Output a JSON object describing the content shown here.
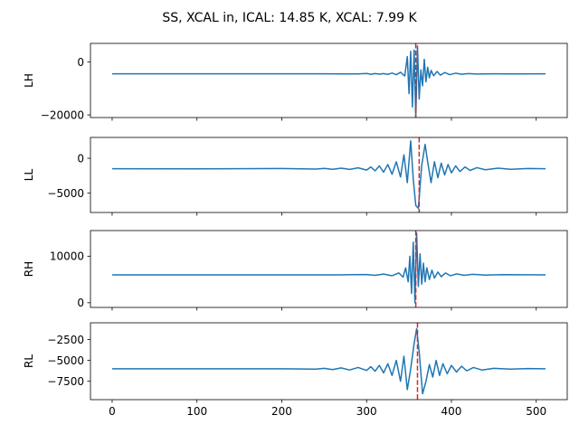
{
  "figure": {
    "title": "SS, XCAL in, ICAL: 14.85 K, XCAL: 7.99 K"
  },
  "colors": {
    "signal": "#1f77b4",
    "marker": "#d62728",
    "axes": "#000000",
    "background": "#ffffff"
  },
  "chart_data": [
    {
      "type": "line",
      "ylabel": "LH",
      "xlim": [
        -25.55,
        536.55
      ],
      "ylim": [
        -21000,
        7000
      ],
      "yticks": [
        -20000,
        0
      ],
      "ytick_labels": [
        "−20000",
        "0"
      ],
      "xticks": [
        0,
        100,
        200,
        300,
        400,
        500
      ],
      "xtick_labels": [],
      "marker_x": 358,
      "baseline": -4500,
      "series": [
        {
          "values": [
            [
              0,
              -4500
            ],
            [
              250,
              -4500
            ],
            [
              290,
              -4520
            ],
            [
              300,
              -4350
            ],
            [
              305,
              -4650
            ],
            [
              310,
              -4380
            ],
            [
              315,
              -4620
            ],
            [
              320,
              -4400
            ],
            [
              325,
              -4700
            ],
            [
              330,
              -4200
            ],
            [
              335,
              -4800
            ],
            [
              340,
              -3900
            ],
            [
              345,
              -5300
            ],
            [
              348,
              2000
            ],
            [
              350,
              -12000
            ],
            [
              352,
              4000
            ],
            [
              354,
              -17000
            ],
            [
              356,
              4500
            ],
            [
              358,
              -21000
            ],
            [
              360,
              6000
            ],
            [
              362,
              -14000
            ],
            [
              364,
              -3000
            ],
            [
              366,
              -9000
            ],
            [
              368,
              1000
            ],
            [
              370,
              -7500
            ],
            [
              372,
              -2000
            ],
            [
              374,
              -6000
            ],
            [
              376,
              -3200
            ],
            [
              379,
              -5200
            ],
            [
              383,
              -3600
            ],
            [
              387,
              -5000
            ],
            [
              392,
              -4000
            ],
            [
              398,
              -4800
            ],
            [
              405,
              -4250
            ],
            [
              412,
              -4650
            ],
            [
              420,
              -4400
            ],
            [
              430,
              -4550
            ],
            [
              450,
              -4480
            ],
            [
              470,
              -4520
            ],
            [
              511,
              -4500
            ]
          ]
        }
      ]
    },
    {
      "type": "line",
      "ylabel": "LL",
      "xlim": [
        -25.55,
        536.55
      ],
      "ylim": [
        -7800,
        3000
      ],
      "yticks": [
        -5000,
        0
      ],
      "ytick_labels": [
        "−5000",
        "0"
      ],
      "xticks": [
        0,
        100,
        200,
        300,
        400,
        500
      ],
      "xtick_labels": [],
      "marker_x": 362,
      "baseline": -1500,
      "series": [
        {
          "values": [
            [
              0,
              -1500
            ],
            [
              100,
              -1520
            ],
            [
              200,
              -1480
            ],
            [
              240,
              -1550
            ],
            [
              250,
              -1450
            ],
            [
              260,
              -1580
            ],
            [
              270,
              -1420
            ],
            [
              280,
              -1600
            ],
            [
              290,
              -1380
            ],
            [
              300,
              -1700
            ],
            [
              305,
              -1250
            ],
            [
              310,
              -1800
            ],
            [
              315,
              -1100
            ],
            [
              320,
              -2000
            ],
            [
              325,
              -900
            ],
            [
              330,
              -2300
            ],
            [
              335,
              -500
            ],
            [
              340,
              -2700
            ],
            [
              344,
              500
            ],
            [
              348,
              -3500
            ],
            [
              352,
              2500
            ],
            [
              355,
              -3000
            ],
            [
              358,
              -6800
            ],
            [
              361,
              -7200
            ],
            [
              365,
              -1000
            ],
            [
              369,
              2000
            ],
            [
              372,
              -500
            ],
            [
              376,
              -3500
            ],
            [
              380,
              -500
            ],
            [
              384,
              -2800
            ],
            [
              388,
              -700
            ],
            [
              392,
              -2400
            ],
            [
              396,
              -900
            ],
            [
              400,
              -2100
            ],
            [
              405,
              -1100
            ],
            [
              410,
              -1900
            ],
            [
              416,
              -1250
            ],
            [
              422,
              -1750
            ],
            [
              430,
              -1350
            ],
            [
              440,
              -1650
            ],
            [
              455,
              -1420
            ],
            [
              470,
              -1580
            ],
            [
              490,
              -1470
            ],
            [
              511,
              -1500
            ]
          ]
        }
      ]
    },
    {
      "type": "line",
      "ylabel": "RH",
      "xlim": [
        -25.55,
        536.55
      ],
      "ylim": [
        -1000,
        15500
      ],
      "yticks": [
        0,
        10000
      ],
      "ytick_labels": [
        "0",
        "10000"
      ],
      "xticks": [
        0,
        100,
        200,
        300,
        400,
        500
      ],
      "xtick_labels": [],
      "marker_x": 358,
      "baseline": 6000,
      "series": [
        {
          "values": [
            [
              0,
              6000
            ],
            [
              270,
              6000
            ],
            [
              300,
              6050
            ],
            [
              310,
              5900
            ],
            [
              320,
              6150
            ],
            [
              330,
              5800
            ],
            [
              338,
              6400
            ],
            [
              343,
              5500
            ],
            [
              346,
              7500
            ],
            [
              349,
              4500
            ],
            [
              351,
              10000
            ],
            [
              353,
              2000
            ],
            [
              355,
              13000
            ],
            [
              357,
              0
            ],
            [
              359,
              15000
            ],
            [
              361,
              3500
            ],
            [
              363,
              10500
            ],
            [
              365,
              4000
            ],
            [
              367,
              8500
            ],
            [
              369,
              4500
            ],
            [
              371,
              7500
            ],
            [
              374,
              5000
            ],
            [
              377,
              7000
            ],
            [
              380,
              5300
            ],
            [
              384,
              6600
            ],
            [
              388,
              5600
            ],
            [
              393,
              6400
            ],
            [
              399,
              5800
            ],
            [
              406,
              6200
            ],
            [
              415,
              5900
            ],
            [
              425,
              6100
            ],
            [
              440,
              5950
            ],
            [
              460,
              6030
            ],
            [
              511,
              6000
            ]
          ]
        }
      ]
    },
    {
      "type": "line",
      "ylabel": "RL",
      "xlim": [
        -25.55,
        536.55
      ],
      "ylim": [
        -9700,
        -500
      ],
      "yticks": [
        -7500,
        -5000,
        -2500
      ],
      "ytick_labels": [
        "−7500",
        "−5000",
        "−2500"
      ],
      "xticks": [
        0,
        100,
        200,
        300,
        400,
        500
      ],
      "xtick_labels": [
        "0",
        "100",
        "200",
        "300",
        "400",
        "500"
      ],
      "marker_x": 360,
      "baseline": -6000,
      "series": [
        {
          "values": [
            [
              0,
              -6000
            ],
            [
              200,
              -6000
            ],
            [
              240,
              -6050
            ],
            [
              250,
              -5950
            ],
            [
              260,
              -6100
            ],
            [
              270,
              -5900
            ],
            [
              280,
              -6150
            ],
            [
              290,
              -5850
            ],
            [
              300,
              -6200
            ],
            [
              305,
              -5750
            ],
            [
              310,
              -6300
            ],
            [
              315,
              -5600
            ],
            [
              320,
              -6500
            ],
            [
              325,
              -5400
            ],
            [
              330,
              -6800
            ],
            [
              335,
              -5000
            ],
            [
              340,
              -7500
            ],
            [
              344,
              -4500
            ],
            [
              348,
              -8500
            ],
            [
              352,
              -6000
            ],
            [
              356,
              -3000
            ],
            [
              359,
              -1200
            ],
            [
              362,
              -4000
            ],
            [
              366,
              -9000
            ],
            [
              370,
              -7500
            ],
            [
              374,
              -5500
            ],
            [
              378,
              -7000
            ],
            [
              382,
              -5000
            ],
            [
              386,
              -6800
            ],
            [
              390,
              -5400
            ],
            [
              395,
              -6600
            ],
            [
              400,
              -5600
            ],
            [
              406,
              -6400
            ],
            [
              412,
              -5700
            ],
            [
              418,
              -6250
            ],
            [
              426,
              -5850
            ],
            [
              436,
              -6150
            ],
            [
              450,
              -5950
            ],
            [
              470,
              -6050
            ],
            [
              490,
              -5980
            ],
            [
              511,
              -6000
            ]
          ]
        }
      ]
    }
  ]
}
